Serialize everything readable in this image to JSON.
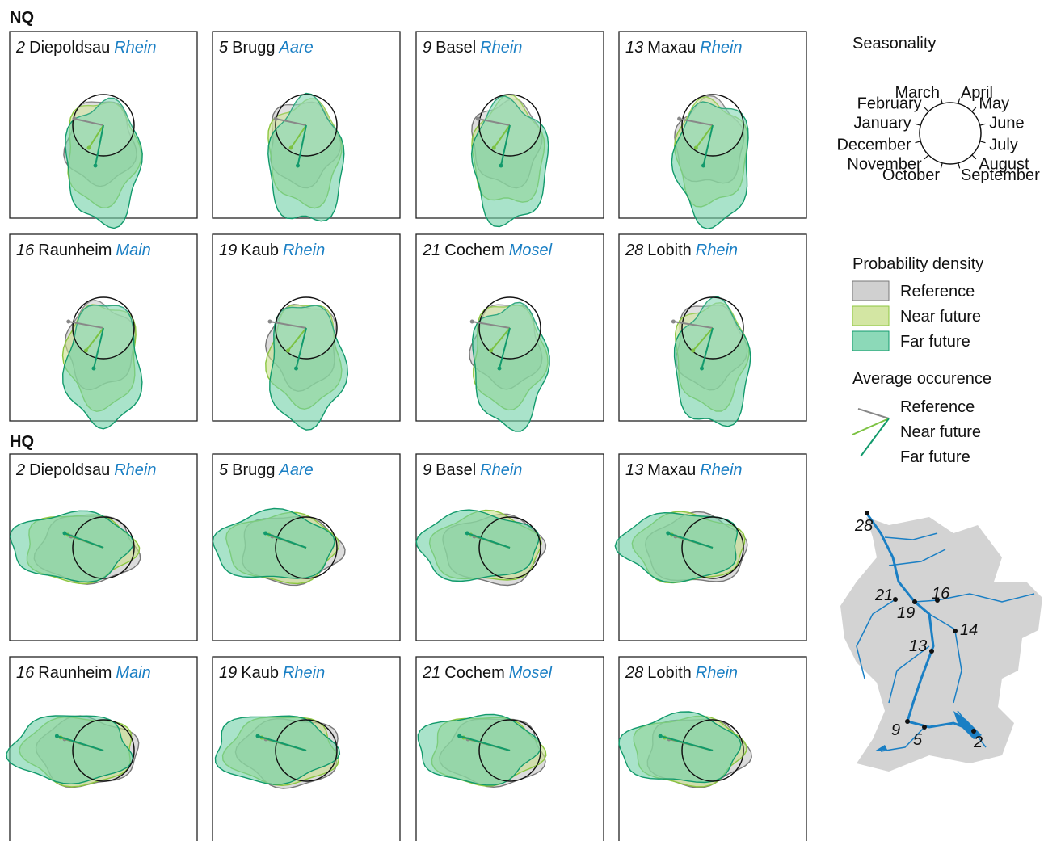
{
  "figure": {
    "groups": [
      {
        "label": "NQ",
        "panels": [
          {
            "number": "2",
            "station": "Diepoldsau",
            "river": "Rhein"
          },
          {
            "number": "5",
            "station": "Brugg",
            "river": "Aare"
          },
          {
            "number": "9",
            "station": "Basel",
            "river": "Rhein"
          },
          {
            "number": "13",
            "station": "Maxau",
            "river": "Rhein"
          },
          {
            "number": "16",
            "station": "Raunheim",
            "river": "Main"
          },
          {
            "number": "19",
            "station": "Kaub",
            "river": "Rhein"
          },
          {
            "number": "21",
            "station": "Cochem",
            "river": "Mosel"
          },
          {
            "number": "28",
            "station": "Lobith",
            "river": "Rhein"
          }
        ]
      },
      {
        "label": "HQ",
        "panels": [
          {
            "number": "2",
            "station": "Diepoldsau",
            "river": "Rhein"
          },
          {
            "number": "5",
            "station": "Brugg",
            "river": "Aare"
          },
          {
            "number": "9",
            "station": "Basel",
            "river": "Rhein"
          },
          {
            "number": "13",
            "station": "Maxau",
            "river": "Rhein"
          },
          {
            "number": "16",
            "station": "Raunheim",
            "river": "Main"
          },
          {
            "number": "19",
            "station": "Kaub",
            "river": "Rhein"
          },
          {
            "number": "21",
            "station": "Cochem",
            "river": "Mosel"
          },
          {
            "number": "28",
            "station": "Lobith",
            "river": "Rhein"
          }
        ]
      }
    ]
  },
  "legend": {
    "seasonality": {
      "title": "Seasonality",
      "months": [
        "January",
        "February",
        "March",
        "April",
        "May",
        "June",
        "July",
        "August",
        "September",
        "October",
        "November",
        "December"
      ]
    },
    "density": {
      "title": "Probability density",
      "items": [
        "Reference",
        "Near future",
        "Far future"
      ]
    },
    "occurrence": {
      "title": "Average occurence",
      "items": [
        "Reference",
        "Near future",
        "Far future"
      ]
    }
  },
  "map": {
    "stations": [
      "28",
      "21",
      "19",
      "16",
      "14",
      "13",
      "9",
      "5",
      "2"
    ]
  }
}
